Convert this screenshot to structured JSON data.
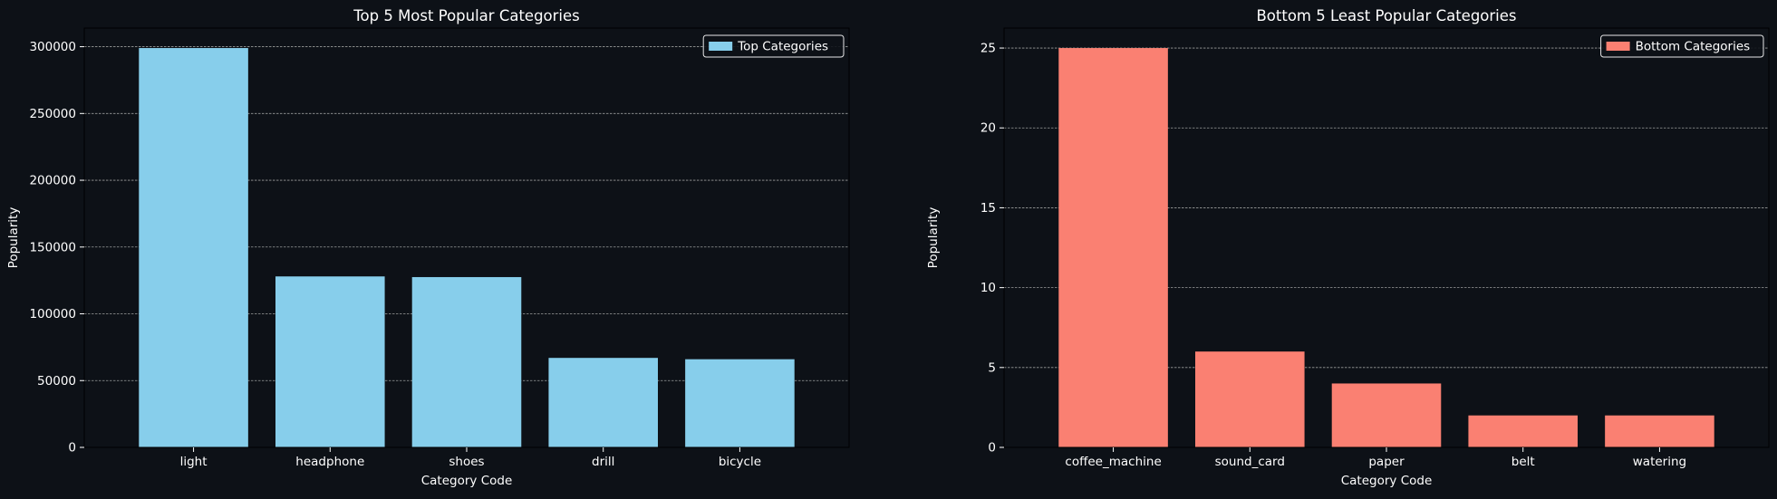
{
  "colors": {
    "figure_bg": "#0d1117",
    "axes_bg": "#0d1117",
    "text": "#ffffff",
    "grid": "#aaaaaa",
    "spine": "#000000",
    "legend_bg": "#0d1117",
    "legend_border": "#ffffff"
  },
  "chart_data": [
    {
      "type": "bar",
      "title": "Top 5 Most Popular Categories",
      "xlabel": "Category Code",
      "ylabel": "Popularity",
      "categories": [
        "light",
        "headphone",
        "shoes",
        "drill",
        "bicycle"
      ],
      "series": [
        {
          "name": "Top Categories",
          "color": "#87ceeb",
          "values": [
            299000,
            128000,
            127500,
            67000,
            66000
          ]
        }
      ],
      "ylim": [
        0,
        313950
      ],
      "yticks": [
        0,
        50000,
        100000,
        150000,
        200000,
        250000,
        300000
      ],
      "ytick_labels": [
        "0",
        "50000",
        "100000",
        "150000",
        "200000",
        "250000",
        "300000"
      ],
      "grid": "y-dashed",
      "legend_loc": "upper right"
    },
    {
      "type": "bar",
      "title": "Bottom 5 Least Popular Categories",
      "xlabel": "Category Code",
      "ylabel": "Popularity",
      "categories": [
        "coffee_machine",
        "sound_card",
        "paper",
        "belt",
        "watering"
      ],
      "series": [
        {
          "name": "Bottom Categories",
          "color": "#fa8072",
          "values": [
            25,
            6,
            4,
            2,
            2
          ]
        }
      ],
      "ylim": [
        0,
        26.25
      ],
      "yticks": [
        0,
        5,
        10,
        15,
        20,
        25
      ],
      "ytick_labels": [
        "0",
        "5",
        "10",
        "15",
        "20",
        "25"
      ],
      "grid": "y-dashed",
      "legend_loc": "upper right"
    }
  ]
}
